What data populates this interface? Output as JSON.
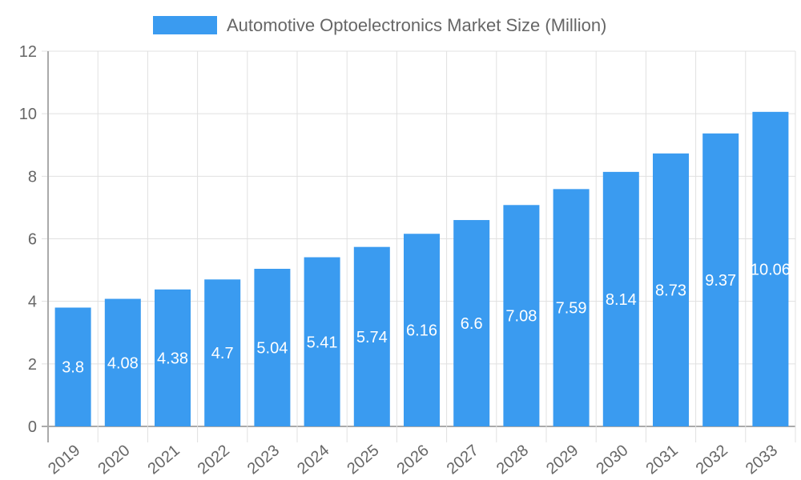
{
  "chart_data": {
    "type": "bar",
    "legend": {
      "position": "top",
      "entries": [
        "Automotive Optoelectronics Market Size (Million)"
      ]
    },
    "categories": [
      "2019",
      "2020",
      "2021",
      "2022",
      "2023",
      "2024",
      "2025",
      "2026",
      "2027",
      "2028",
      "2029",
      "2030",
      "2031",
      "2032",
      "2033"
    ],
    "series": [
      {
        "name": "Automotive Optoelectronics Market Size (Million)",
        "values": [
          3.8,
          4.08,
          4.38,
          4.7,
          5.04,
          5.41,
          5.74,
          6.16,
          6.6,
          7.08,
          7.59,
          8.14,
          8.73,
          9.37,
          10.06
        ],
        "color": "#3a9bf0"
      }
    ],
    "ylim": [
      0,
      12
    ],
    "yticks": [
      0,
      2,
      4,
      6,
      8,
      10,
      12
    ],
    "grid": true,
    "data_labels": true,
    "xlabel": "",
    "ylabel": ""
  }
}
